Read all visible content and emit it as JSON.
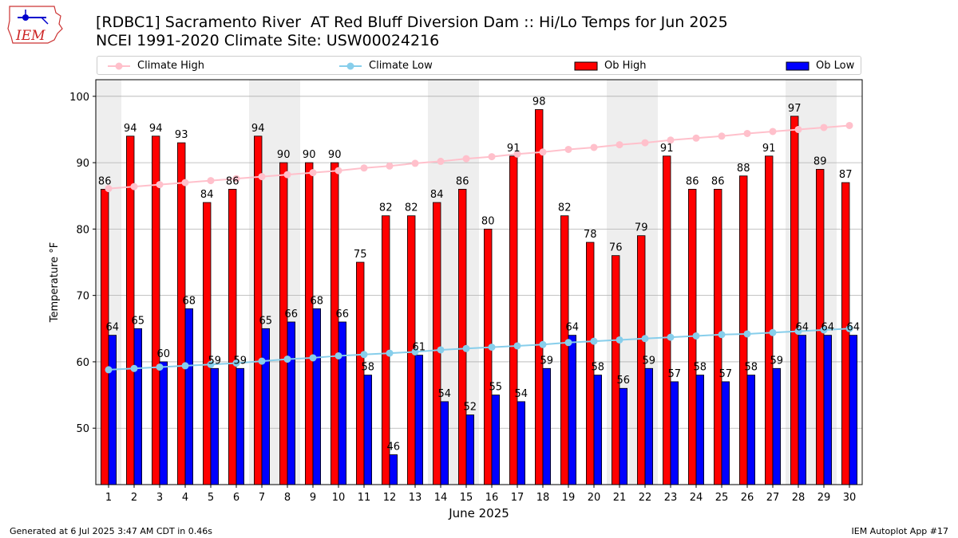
{
  "header": {
    "logo_text": "IEM",
    "title_line1": "[RDBC1] Sacramento River  AT Red Bluff Diversion Dam :: Hi/Lo Temps for Jun 2025",
    "title_line2": "NCEI 1991-2020 Climate Site: USW00024216"
  },
  "colors": {
    "ob_high": "#ff0000",
    "ob_low": "#0000ff",
    "climate_high": "#ffc0cb",
    "climate_low": "#87ceeb",
    "weekend_shade": "#eeeeee",
    "grid": "#b0b0b0"
  },
  "chart_data": {
    "type": "bar",
    "xlabel": "June 2025",
    "ylabel": "Temperature °F",
    "ylim": [
      41.5,
      102.5
    ],
    "yticks": [
      50,
      60,
      70,
      80,
      90,
      100
    ],
    "grid": "horizontal",
    "legend_position": "top, above plot",
    "categories": [
      "1",
      "2",
      "3",
      "4",
      "5",
      "6",
      "7",
      "8",
      "9",
      "10",
      "11",
      "12",
      "13",
      "14",
      "15",
      "16",
      "17",
      "18",
      "19",
      "20",
      "21",
      "22",
      "23",
      "24",
      "25",
      "26",
      "27",
      "28",
      "29",
      "30"
    ],
    "shaded_days": [
      1,
      7,
      8,
      14,
      15,
      21,
      22,
      28,
      29
    ],
    "series": [
      {
        "name": "Ob High",
        "kind": "bar",
        "values": [
          86,
          94,
          94,
          93,
          84,
          86,
          94,
          90,
          90,
          90,
          75,
          82,
          82,
          84,
          86,
          80,
          91,
          98,
          82,
          78,
          76,
          79,
          91,
          86,
          86,
          88,
          91,
          97,
          89,
          87
        ]
      },
      {
        "name": "Ob Low",
        "kind": "bar",
        "values": [
          64,
          65,
          60,
          68,
          59,
          59,
          65,
          66,
          68,
          66,
          58,
          46,
          61,
          54,
          52,
          55,
          54,
          59,
          64,
          58,
          56,
          59,
          57,
          58,
          57,
          58,
          59,
          64,
          64,
          64
        ]
      },
      {
        "name": "Climate High",
        "kind": "line",
        "values": [
          86.1,
          86.4,
          86.7,
          87.0,
          87.3,
          87.6,
          87.9,
          88.2,
          88.5,
          88.8,
          89.2,
          89.5,
          89.9,
          90.2,
          90.6,
          90.9,
          91.3,
          91.6,
          92.0,
          92.3,
          92.7,
          93.0,
          93.4,
          93.7,
          94.0,
          94.4,
          94.7,
          95.0,
          95.3,
          95.6
        ]
      },
      {
        "name": "Climate Low",
        "kind": "line",
        "values": [
          58.8,
          59.0,
          59.2,
          59.4,
          59.6,
          59.8,
          60.1,
          60.4,
          60.6,
          60.9,
          61.1,
          61.3,
          61.5,
          61.8,
          62.0,
          62.2,
          62.4,
          62.6,
          62.9,
          63.1,
          63.3,
          63.5,
          63.7,
          63.9,
          64.1,
          64.2,
          64.4,
          64.6,
          64.8,
          65.0
        ]
      }
    ]
  },
  "footer": {
    "generated": "Generated at 6 Jul 2025 3:47 AM CDT in 0.46s",
    "app": "IEM Autoplot App #17"
  }
}
